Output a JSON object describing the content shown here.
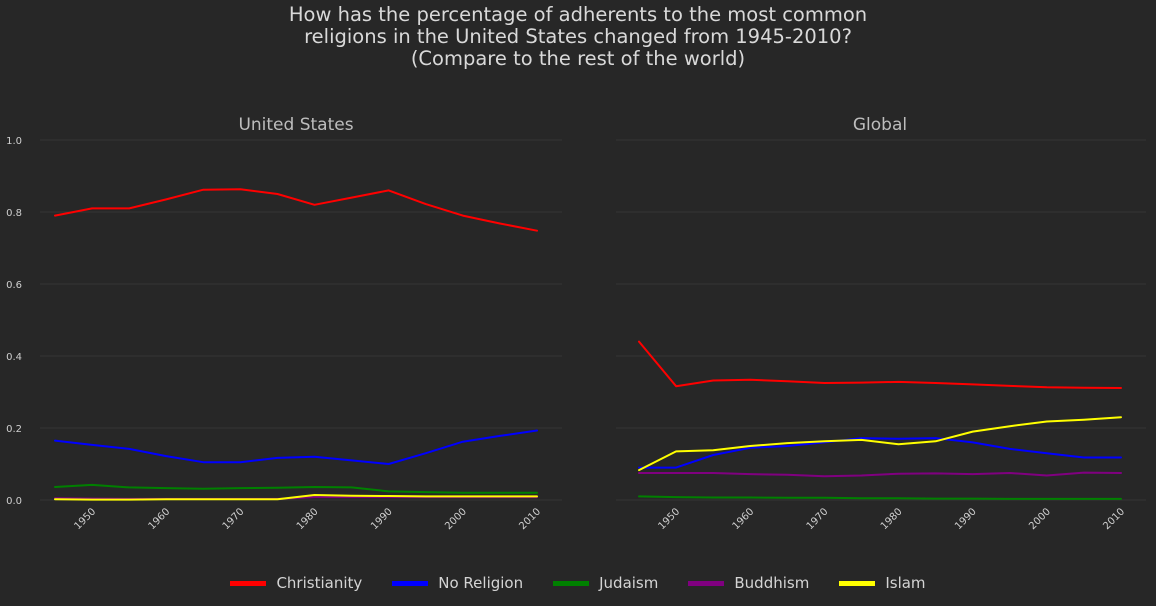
{
  "title_lines": [
    "How has the percentage of adherents to the most common",
    "religions in the United States changed from 1945-2010?",
    "(Compare to the rest of the world)"
  ],
  "chart_data": [
    {
      "type": "line",
      "title": "United States",
      "x": [
        1945,
        1950,
        1955,
        1960,
        1965,
        1970,
        1975,
        1980,
        1985,
        1990,
        1995,
        2000,
        2005,
        2010
      ],
      "xticks": [
        "1950",
        "1960",
        "1970",
        "1980",
        "1990",
        "2000",
        "2010"
      ],
      "yticks": [
        "0.0",
        "0.2",
        "0.4",
        "0.6",
        "0.8",
        "1.0"
      ],
      "ylim": [
        0,
        1.0
      ],
      "grid": true,
      "series": [
        {
          "name": "Christianity",
          "color": "#ff0000",
          "values": [
            0.79,
            0.81,
            0.81,
            0.835,
            0.862,
            0.863,
            0.85,
            0.82,
            0.84,
            0.86,
            0.822,
            0.79,
            0.768,
            0.748
          ]
        },
        {
          "name": "No Religion",
          "color": "#0000ff",
          "values": [
            0.165,
            0.153,
            0.142,
            0.122,
            0.105,
            0.105,
            0.117,
            0.12,
            0.11,
            0.1,
            0.13,
            0.162,
            0.178,
            0.193
          ]
        },
        {
          "name": "Judaism",
          "color": "#008000",
          "values": [
            0.036,
            0.042,
            0.035,
            0.033,
            0.031,
            0.033,
            0.034,
            0.036,
            0.035,
            0.024,
            0.022,
            0.02,
            0.02,
            0.02
          ]
        },
        {
          "name": "Buddhism",
          "color": "#800080",
          "values": [
            0.005,
            0.004,
            0.003,
            0.003,
            0.003,
            0.003,
            0.003,
            0.008,
            0.008,
            0.008,
            0.008,
            0.008,
            0.008,
            0.008
          ]
        },
        {
          "name": "Islam",
          "color": "#ffff00",
          "values": [
            0.002,
            0.001,
            0.001,
            0.002,
            0.002,
            0.002,
            0.002,
            0.014,
            0.012,
            0.011,
            0.01,
            0.01,
            0.01,
            0.01
          ]
        }
      ]
    },
    {
      "type": "line",
      "title": "Global",
      "x": [
        1945,
        1950,
        1955,
        1960,
        1965,
        1970,
        1975,
        1980,
        1985,
        1990,
        1995,
        2000,
        2005,
        2010
      ],
      "xticks": [
        "1950",
        "1960",
        "1970",
        "1980",
        "1990",
        "2000",
        "2010"
      ],
      "ylim": [
        0,
        1.0
      ],
      "grid": true,
      "series": [
        {
          "name": "Christianity",
          "color": "#ff0000",
          "values": [
            0.44,
            0.316,
            0.332,
            0.334,
            0.33,
            0.325,
            0.326,
            0.328,
            0.325,
            0.321,
            0.317,
            0.313,
            0.312,
            0.311
          ]
        },
        {
          "name": "No Religion",
          "color": "#0000ff",
          "values": [
            0.09,
            0.09,
            0.125,
            0.145,
            0.15,
            0.16,
            0.172,
            0.17,
            0.172,
            0.16,
            0.142,
            0.13,
            0.118,
            0.118
          ]
        },
        {
          "name": "Judaism",
          "color": "#008000",
          "values": [
            0.01,
            0.008,
            0.007,
            0.007,
            0.006,
            0.006,
            0.005,
            0.005,
            0.004,
            0.004,
            0.003,
            0.003,
            0.003,
            0.003
          ]
        },
        {
          "name": "Buddhism",
          "color": "#800080",
          "values": [
            0.075,
            0.075,
            0.075,
            0.072,
            0.07,
            0.066,
            0.068,
            0.073,
            0.074,
            0.072,
            0.075,
            0.068,
            0.076,
            0.075
          ]
        },
        {
          "name": "Islam",
          "color": "#ffff00",
          "values": [
            0.083,
            0.135,
            0.138,
            0.15,
            0.158,
            0.163,
            0.167,
            0.155,
            0.163,
            0.19,
            0.205,
            0.218,
            0.223,
            0.23
          ]
        }
      ]
    }
  ],
  "legend": [
    {
      "label": "Christianity",
      "color": "#ff0000"
    },
    {
      "label": "No Religion",
      "color": "#0000ff"
    },
    {
      "label": "Judaism",
      "color": "#008000"
    },
    {
      "label": "Buddhism",
      "color": "#800080"
    },
    {
      "label": "Islam",
      "color": "#ffff00"
    }
  ]
}
